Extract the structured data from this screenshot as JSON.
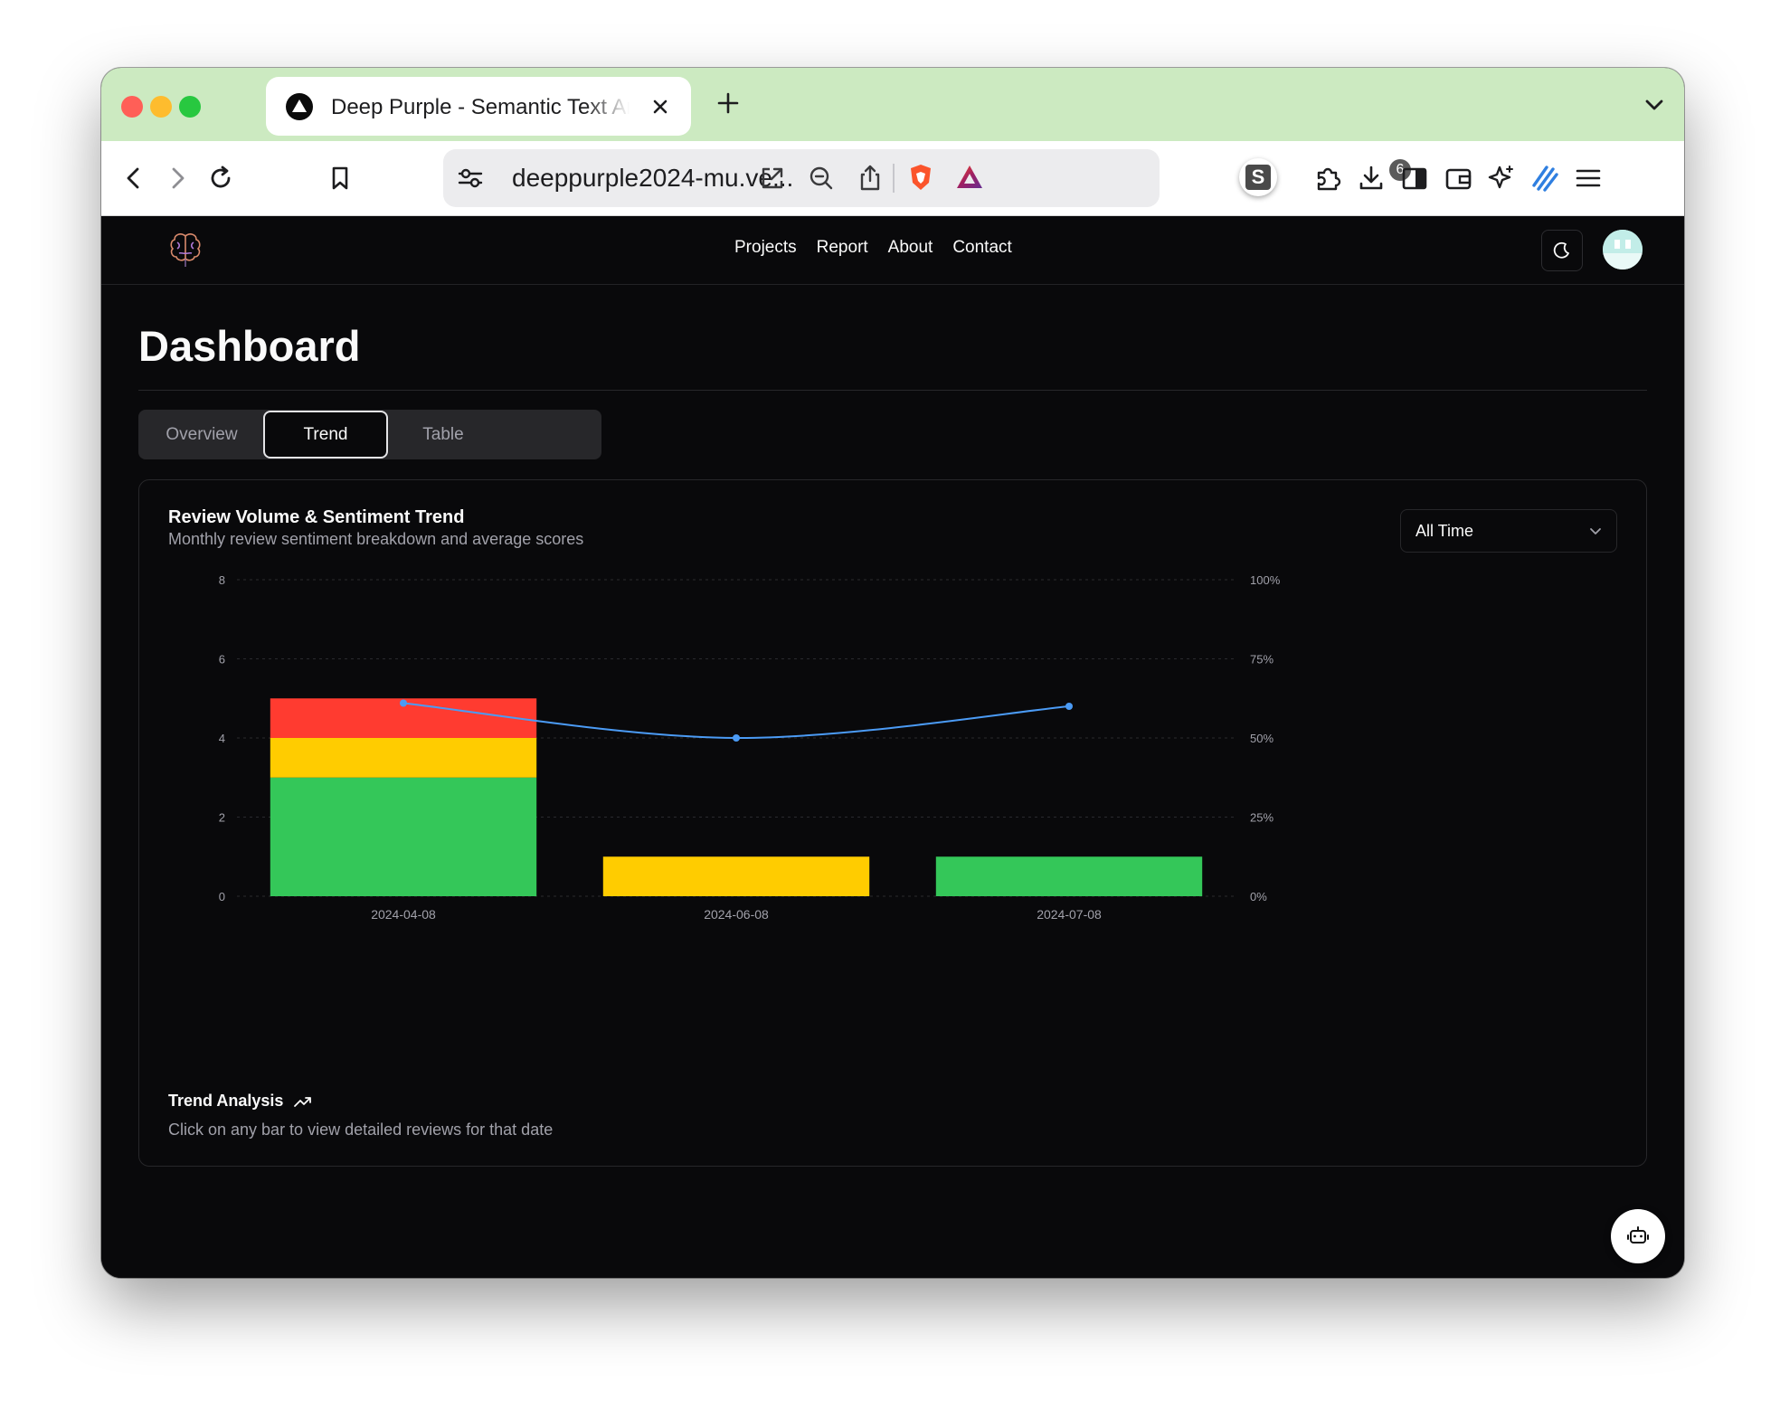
{
  "browser": {
    "tab_title": "Deep Purple - Semantic Text Analysis",
    "url": "deeppurple2024-mu.ve...",
    "shield_badge": "6",
    "extension_letter": "S"
  },
  "nav": {
    "links": [
      "Projects",
      "Report",
      "About",
      "Contact"
    ]
  },
  "dashboard": {
    "title": "Dashboard",
    "tabs": [
      {
        "label": "Overview",
        "active": false
      },
      {
        "label": "Trend",
        "active": true
      },
      {
        "label": "Table",
        "active": false
      }
    ]
  },
  "card": {
    "title": "Review Volume & Sentiment Trend",
    "subtitle": "Monthly review sentiment breakdown and average scores",
    "range_select": "All Time",
    "trend_title": "Trend Analysis",
    "trend_hint": "Click on any bar to view detailed reviews for that date"
  },
  "colors": {
    "positive": "#34c759",
    "neutral": "#ffcc00",
    "negative": "#ff3b30",
    "score_line": "#4b9bf5",
    "accent_tab_strip": "#cceac1"
  },
  "chart_data": {
    "type": "bar",
    "stacked": true,
    "categories": [
      "2024-04-08",
      "2024-06-08",
      "2024-07-08"
    ],
    "series": [
      {
        "key": "positive",
        "values": [
          3,
          0,
          1
        ]
      },
      {
        "key": "neutral",
        "values": [
          1,
          1,
          0
        ]
      },
      {
        "key": "negative",
        "values": [
          1,
          0,
          0
        ]
      }
    ],
    "line_series": {
      "key": "score",
      "axis": "right",
      "values": [
        61,
        50,
        60
      ]
    },
    "ylim": [
      0,
      8
    ],
    "yticks": [
      0,
      2,
      4,
      6,
      8
    ],
    "y2lim": [
      0,
      100
    ],
    "y2ticks": [
      "0%",
      "25%",
      "50%",
      "75%",
      "100%"
    ],
    "grid": true
  }
}
